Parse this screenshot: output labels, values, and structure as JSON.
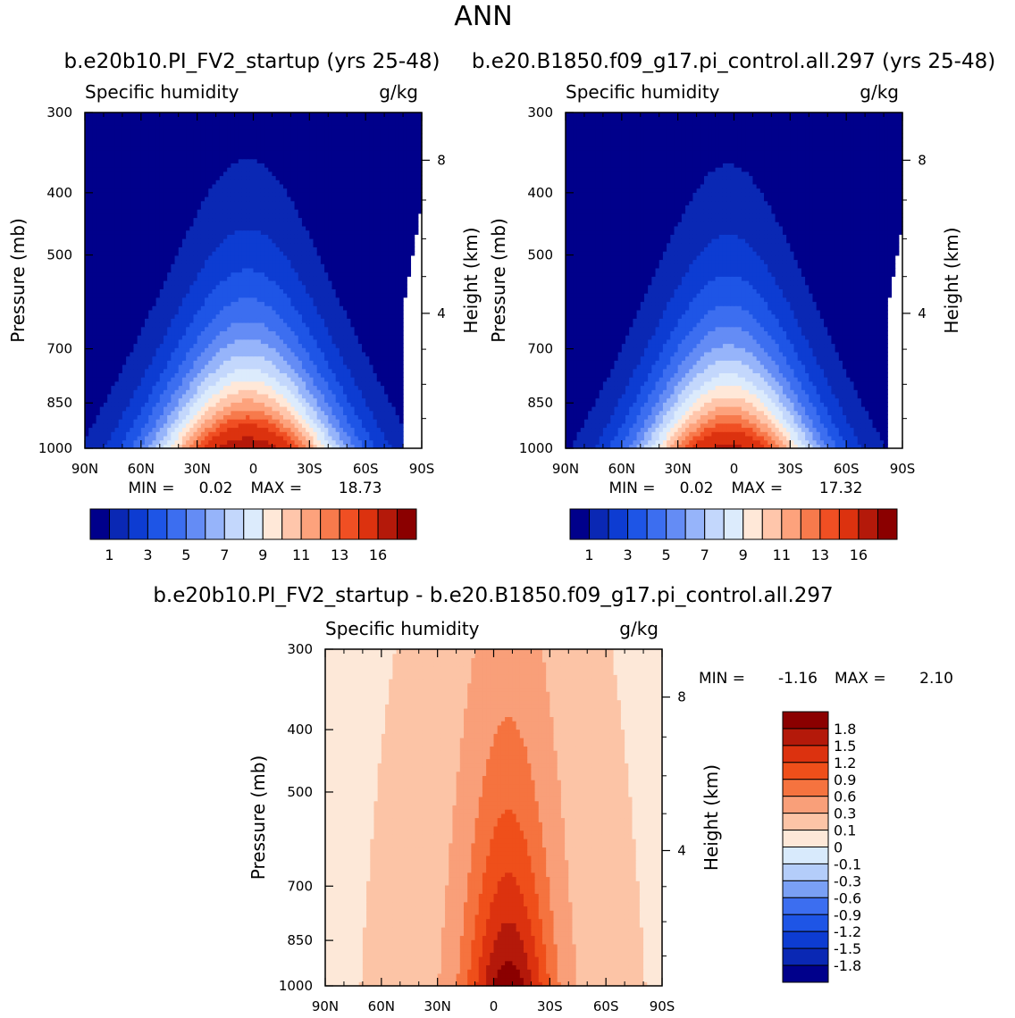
{
  "figure": {
    "season": "ANN",
    "title_left": "b.e20b10.PI_FV2_startup (yrs 25-48)",
    "title_right": "b.e20.B1850.f09_g17.pi_control.all.297 (yrs 25-48)",
    "title_diff": "b.e20b10.PI_FV2_startup - b.e20.B1850.f09_g17.pi_control.all.297"
  },
  "chart_data": [
    {
      "type": "contour",
      "panel": "left",
      "variable_label": "Specific humidity",
      "units_label": "g/kg",
      "ylabel": "Pressure (mb)",
      "y2label": "Height (km)",
      "x_ticks": [
        "90N",
        "60N",
        "30N",
        "0",
        "30S",
        "60S",
        "90S"
      ],
      "y_ticks": [
        "300",
        "400",
        "500",
        "700",
        "850",
        "1000"
      ],
      "y2_ticks": [
        "8",
        "4"
      ],
      "y_log_scale": true,
      "ylim": [
        1000,
        300
      ],
      "xlim": [
        90,
        -90
      ],
      "min_label": "MIN =",
      "min_value": "0.02",
      "max_label": "MAX =",
      "max_value": "18.73",
      "levels": [
        1,
        2,
        3,
        4,
        5,
        6,
        7,
        8,
        9,
        10,
        11,
        12,
        13,
        14,
        16
      ],
      "level_labels": [
        "1",
        "3",
        "5",
        "7",
        "9",
        "11",
        "13",
        "16"
      ],
      "colors": [
        "#00008b",
        "#0a28b4",
        "#0d3cd2",
        "#1e55e6",
        "#3c6ef0",
        "#648cf5",
        "#96b4fa",
        "#c3d7fc",
        "#dcebfc",
        "#ffe8d8",
        "#ffc6ab",
        "#fda27c",
        "#f77a4c",
        "#f04f23",
        "#dc320f",
        "#b4190a",
        "#8b0000"
      ],
      "peak_value": 18.73,
      "surface_value": 17.5,
      "height_at_equator": 0.88,
      "halfwidth_lat": 55,
      "south_extent_lat": -80
    },
    {
      "type": "contour",
      "panel": "right",
      "variable_label": "Specific humidity",
      "units_label": "g/kg",
      "ylabel": "Pressure (mb)",
      "y2label": "Height (km)",
      "x_ticks": [
        "90N",
        "60N",
        "30N",
        "0",
        "30S",
        "60S",
        "90S"
      ],
      "y_ticks": [
        "300",
        "400",
        "500",
        "700",
        "850",
        "1000"
      ],
      "y2_ticks": [
        "8",
        "4"
      ],
      "y_log_scale": true,
      "ylim": [
        1000,
        300
      ],
      "xlim": [
        90,
        -90
      ],
      "min_label": "MIN =",
      "min_value": "0.02",
      "max_label": "MAX =",
      "max_value": "17.32",
      "levels": [
        1,
        2,
        3,
        4,
        5,
        6,
        7,
        8,
        9,
        10,
        11,
        12,
        13,
        14,
        16
      ],
      "level_labels": [
        "1",
        "3",
        "5",
        "7",
        "9",
        "11",
        "13",
        "16"
      ],
      "colors": [
        "#00008b",
        "#0a28b4",
        "#0d3cd2",
        "#1e55e6",
        "#3c6ef0",
        "#648cf5",
        "#96b4fa",
        "#c3d7fc",
        "#dcebfc",
        "#ffe8d8",
        "#ffc6ab",
        "#fda27c",
        "#f77a4c",
        "#f04f23",
        "#dc320f",
        "#b4190a",
        "#8b0000"
      ],
      "peak_value": 17.32,
      "surface_value": 16.5,
      "height_at_equator": 0.85,
      "halfwidth_lat": 52,
      "south_extent_lat": -82
    },
    {
      "type": "contour",
      "panel": "difference",
      "variable_label": "Specific humidity",
      "units_label": "g/kg",
      "ylabel": "Pressure (mb)",
      "y2label": "Height (km)",
      "x_ticks": [
        "90N",
        "60N",
        "30N",
        "0",
        "30S",
        "60S",
        "90S"
      ],
      "y_ticks": [
        "300",
        "400",
        "500",
        "700",
        "850",
        "1000"
      ],
      "y2_ticks": [
        "8",
        "4"
      ],
      "y_log_scale": true,
      "ylim": [
        1000,
        300
      ],
      "xlim": [
        90,
        -90
      ],
      "min_label": "MIN =",
      "min_value": "-1.16",
      "max_label": "MAX =",
      "max_value": "2.10",
      "levels": [
        -1.8,
        -1.5,
        -1.2,
        -0.9,
        -0.6,
        -0.3,
        -0.1,
        0,
        0.1,
        0.3,
        0.6,
        0.9,
        1.2,
        1.5,
        1.8
      ],
      "level_labels": [
        "1.8",
        "1.5",
        "1.2",
        "0.9",
        "0.6",
        "0.3",
        "0.1",
        "0",
        "-0.1",
        "-0.3",
        "-0.6",
        "-0.9",
        "-1.2",
        "-1.5",
        "-1.8"
      ],
      "colors": [
        "#00008b",
        "#0a28b4",
        "#0d3cd2",
        "#1e55e6",
        "#3c6ef0",
        "#7aa0f5",
        "#b4cdfa",
        "#d8eafc",
        "#fde8d8",
        "#fcc4a6",
        "#f99f79",
        "#f5733f",
        "#ef4f1a",
        "#dc320f",
        "#b4190a",
        "#8b0000"
      ],
      "peak_value": 2.1,
      "min_value_num": -1.16
    }
  ]
}
